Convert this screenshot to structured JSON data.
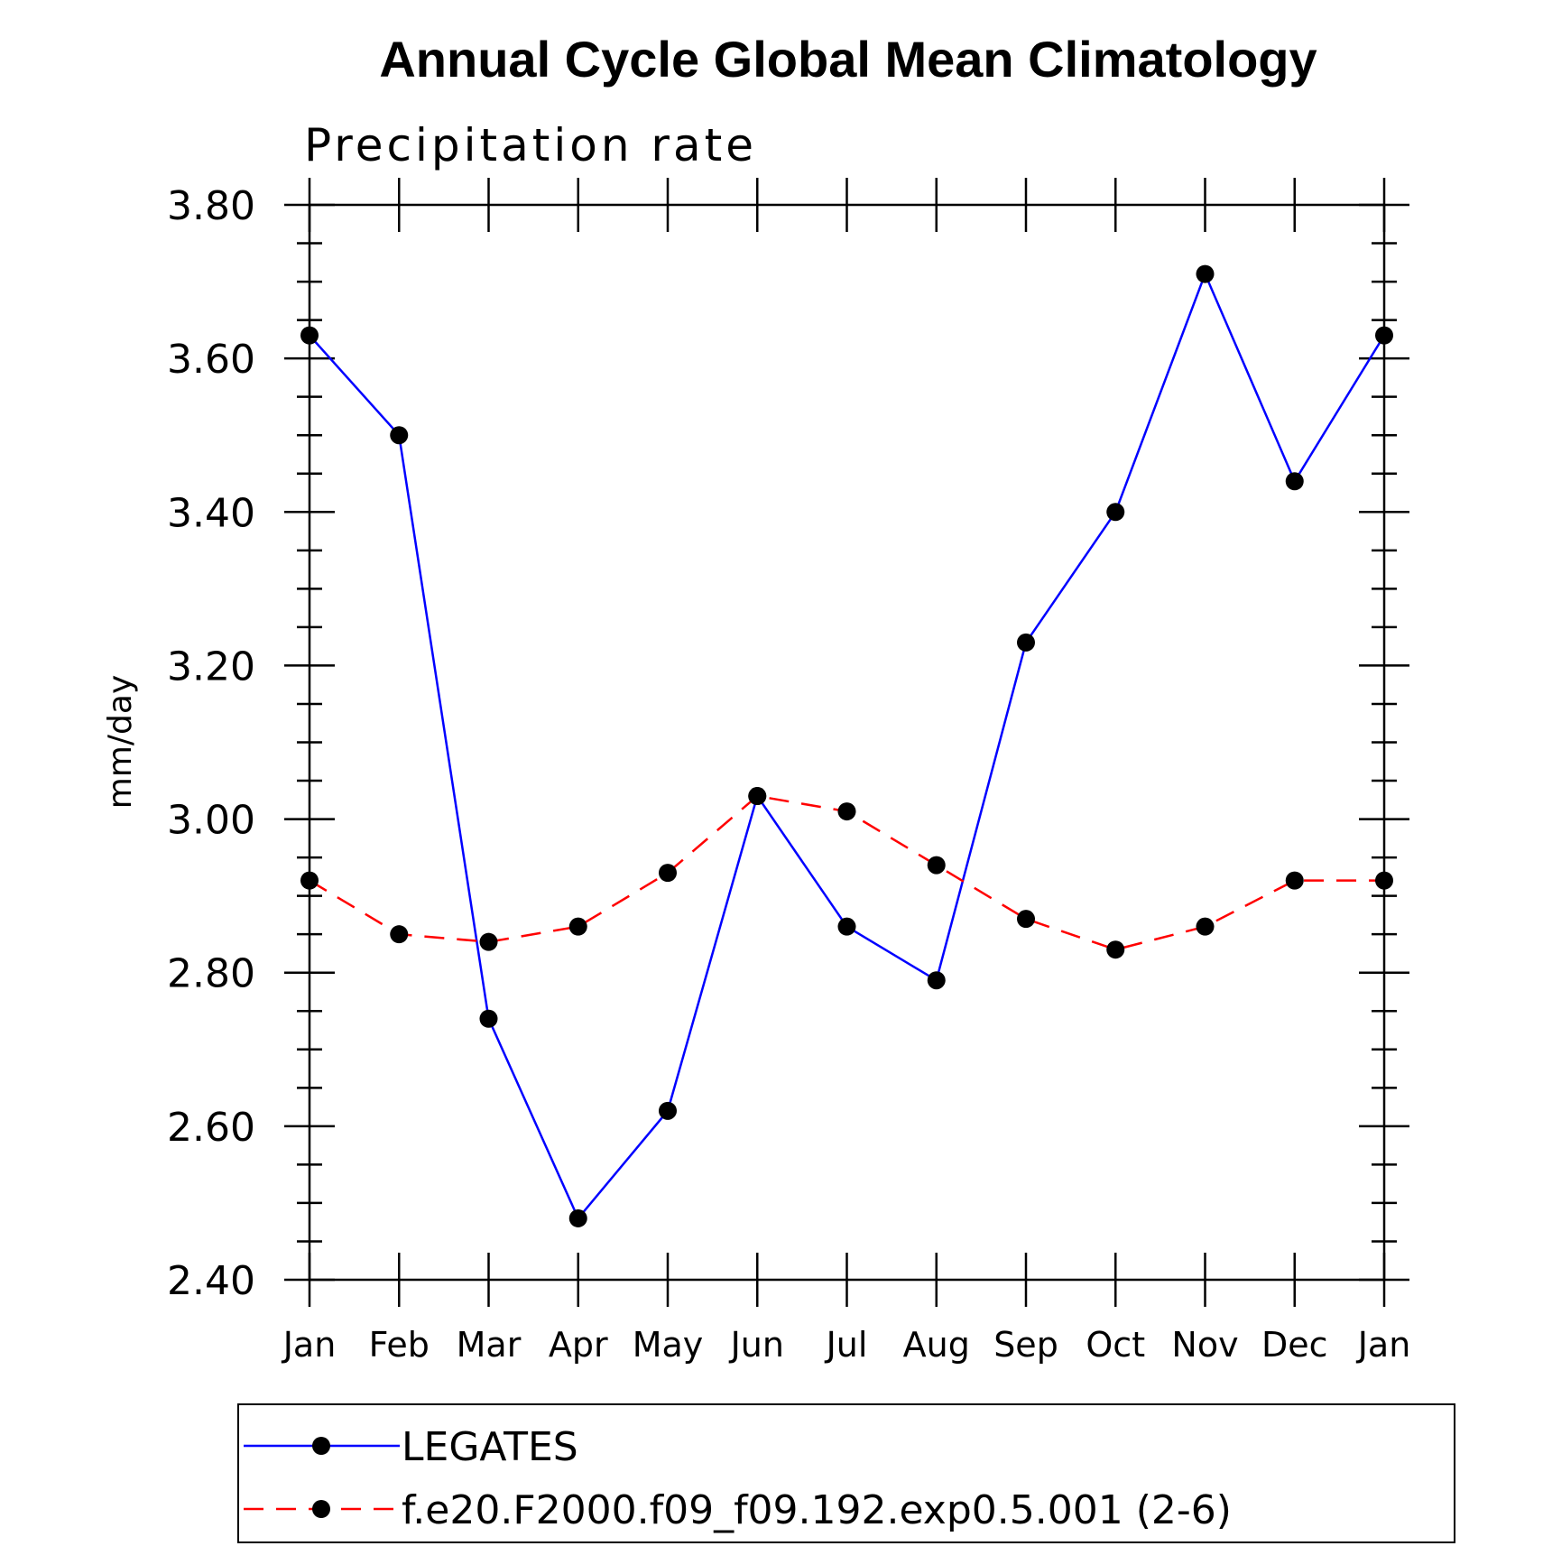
{
  "chart_data": {
    "type": "line",
    "title": "Annual Cycle Global Mean Climatology",
    "subtitle": "Precipitation rate",
    "ylabel": "mm/day",
    "xlabel": "",
    "categories": [
      "Jan",
      "Feb",
      "Mar",
      "Apr",
      "May",
      "Jun",
      "Jul",
      "Aug",
      "Sep",
      "Oct",
      "Nov",
      "Dec",
      "Jan"
    ],
    "ylim": [
      2.4,
      3.8
    ],
    "yticks": [
      "2.40",
      "2.60",
      "2.80",
      "3.00",
      "3.20",
      "3.40",
      "3.60",
      "3.80"
    ],
    "grid": false,
    "legend_position": "bottom",
    "series": [
      {
        "name": "LEGATES",
        "color": "#0000ff",
        "dash": "solid",
        "marker": "filled-circle",
        "values": [
          3.63,
          3.5,
          2.74,
          2.48,
          2.62,
          3.03,
          2.86,
          2.79,
          3.23,
          3.4,
          3.71,
          3.44,
          3.63
        ]
      },
      {
        "name": "f.e20.F2000.f09_f09.192.exp0.5.001 (2-6)",
        "color": "#ff0000",
        "dash": "dashed",
        "marker": "filled-circle",
        "values": [
          2.92,
          2.85,
          2.84,
          2.86,
          2.93,
          3.03,
          3.01,
          2.94,
          2.87,
          2.83,
          2.86,
          2.92,
          2.92
        ]
      }
    ]
  }
}
